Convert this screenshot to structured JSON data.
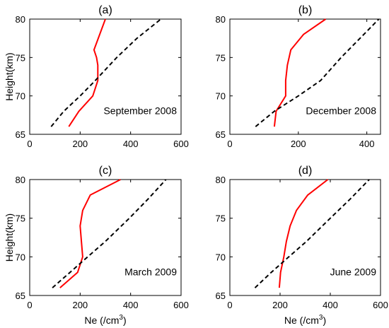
{
  "chart_data": [
    {
      "type": "line",
      "title": "(a)",
      "annotation": "September 2008",
      "xlabel": "",
      "ylabel": "Height(km)",
      "xlim": [
        0,
        600
      ],
      "ylim": [
        65,
        80
      ],
      "xticks": [
        0,
        200,
        400,
        600
      ],
      "yticks": [
        65,
        70,
        75,
        80
      ],
      "series": [
        {
          "style": "solid",
          "color": "#ff0000",
          "points": [
            [
              155,
              66
            ],
            [
              195,
              68
            ],
            [
              250,
              70
            ],
            [
              270,
              72
            ],
            [
              270,
              74
            ],
            [
              265,
              75
            ],
            [
              255,
              76
            ],
            [
              300,
              80
            ]
          ]
        },
        {
          "style": "dashed",
          "color": "#000000",
          "points": [
            [
              85,
              66
            ],
            [
              135,
              68
            ],
            [
              200,
              70
            ],
            [
              260,
              72
            ],
            [
              345,
              75
            ],
            [
              425,
              77.5
            ],
            [
              520,
              80
            ]
          ]
        }
      ]
    },
    {
      "type": "line",
      "title": "(b)",
      "annotation": "December 2008",
      "xlabel": "",
      "ylabel": "",
      "xlim": [
        0,
        440
      ],
      "ylim": [
        65,
        80
      ],
      "xticks": [
        0,
        200,
        400
      ],
      "yticks": [
        65,
        70,
        75,
        80
      ],
      "series": [
        {
          "style": "solid",
          "color": "#ff0000",
          "points": [
            [
              130,
              66
            ],
            [
              135,
              68
            ],
            [
              163,
              70
            ],
            [
              163,
              72
            ],
            [
              168,
              74
            ],
            [
              178,
              76
            ],
            [
              215,
              78
            ],
            [
              280,
              80
            ]
          ]
        },
        {
          "style": "dashed",
          "color": "#000000",
          "points": [
            [
              75,
              66
            ],
            [
              130,
              68
            ],
            [
              200,
              70
            ],
            [
              265,
              72
            ],
            [
              325,
              75
            ],
            [
              380,
              77.5
            ],
            [
              435,
              80
            ]
          ]
        }
      ]
    },
    {
      "type": "line",
      "title": "(c)",
      "annotation": "March 2009",
      "xlabel": "Ne (/cm3)",
      "ylabel": "Height(km)",
      "xlim": [
        0,
        600
      ],
      "ylim": [
        65,
        80
      ],
      "xticks": [
        0,
        200,
        400,
        600
      ],
      "yticks": [
        65,
        70,
        75,
        80
      ],
      "series": [
        {
          "style": "solid",
          "color": "#ff0000",
          "points": [
            [
              120,
              66
            ],
            [
              190,
              68
            ],
            [
              210,
              70
            ],
            [
              205,
              72
            ],
            [
              200,
              74
            ],
            [
              210,
              76
            ],
            [
              240,
              78
            ],
            [
              360,
              80
            ]
          ]
        },
        {
          "style": "dashed",
          "color": "#000000",
          "points": [
            [
              90,
              66
            ],
            [
              160,
              68
            ],
            [
              230,
              70
            ],
            [
              300,
              72
            ],
            [
              395,
              75
            ],
            [
              470,
              77.5
            ],
            [
              540,
              80
            ]
          ]
        }
      ]
    },
    {
      "type": "line",
      "title": "(d)",
      "annotation": "June 2009",
      "xlabel": "Ne (/cm3)",
      "ylabel": "",
      "xlim": [
        0,
        600
      ],
      "ylim": [
        65,
        80
      ],
      "xticks": [
        0,
        200,
        400,
        600
      ],
      "yticks": [
        65,
        70,
        75,
        80
      ],
      "series": [
        {
          "style": "solid",
          "color": "#ff0000",
          "points": [
            [
              197,
              66
            ],
            [
              202,
              68
            ],
            [
              215,
              70
            ],
            [
              225,
              72
            ],
            [
              240,
              74
            ],
            [
              265,
              76
            ],
            [
              310,
              78
            ],
            [
              390,
              80
            ]
          ]
        },
        {
          "style": "dashed",
          "color": "#000000",
          "points": [
            [
              100,
              66
            ],
            [
              165,
              68
            ],
            [
              235,
              70
            ],
            [
              305,
              72
            ],
            [
              400,
              75
            ],
            [
              480,
              77.5
            ],
            [
              555,
              80
            ]
          ]
        }
      ]
    }
  ]
}
